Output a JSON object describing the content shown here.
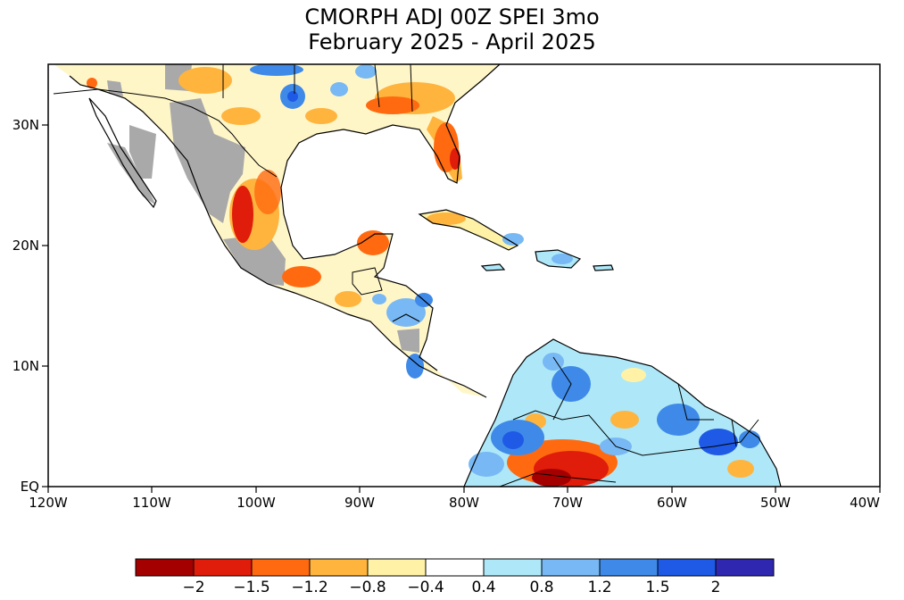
{
  "title": {
    "line1": "CMORPH ADJ 00Z SPEI 3mo",
    "line2": "February 2025 - April 2025"
  },
  "map": {
    "lon_range": [
      -120,
      -40
    ],
    "lat_range": [
      0,
      35
    ],
    "x_ticks": [
      "120W",
      "110W",
      "100W",
      "90W",
      "80W",
      "70W",
      "60W",
      "50W",
      "40W"
    ],
    "y_ticks": [
      "EQ",
      "10N",
      "20N",
      "30N"
    ],
    "no_data_color": "#a9a9a9",
    "ocean_color": "#ffffff",
    "coastline_color": "#000000"
  },
  "colorbar": {
    "labels": [
      "-2",
      "-1.5",
      "-1.2",
      "-0.8",
      "-0.4",
      "0.4",
      "0.8",
      "1.2",
      "1.5",
      "2"
    ],
    "colors": [
      "#a50000",
      "#e01c0a",
      "#ff6a10",
      "#ffb43e",
      "#fff2a6",
      "#ffffff",
      "#aee8f8",
      "#78b8f4",
      "#3f8ae8",
      "#1e5ae6",
      "#2f27b0"
    ]
  }
}
